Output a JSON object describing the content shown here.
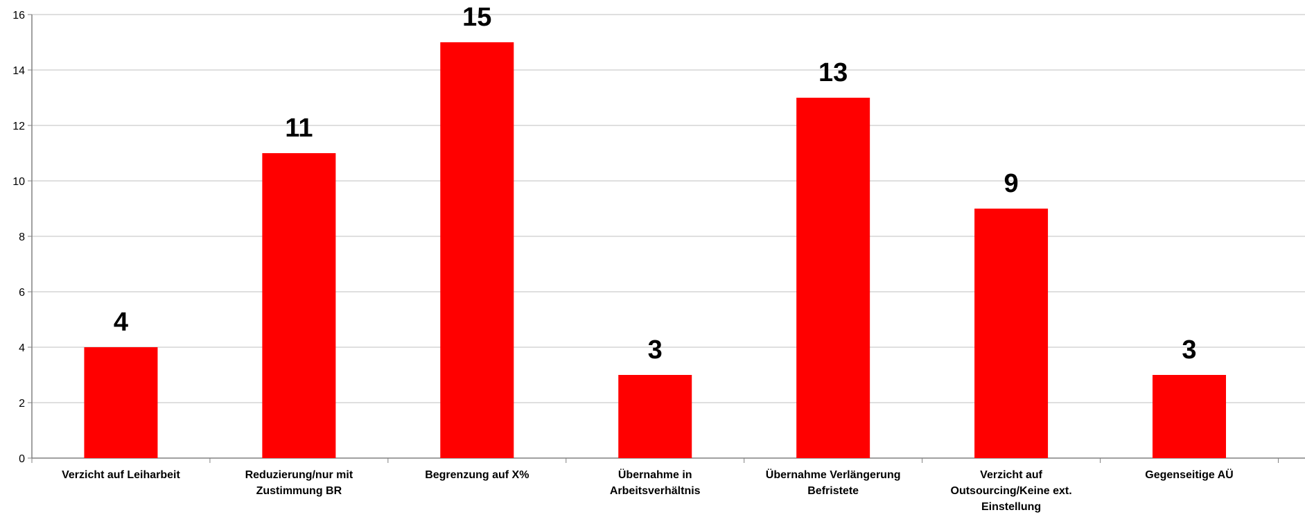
{
  "chart_data": {
    "type": "bar",
    "title": "",
    "xlabel": "",
    "ylabel": "",
    "ylim": [
      0,
      16
    ],
    "yticks": [
      0,
      2,
      4,
      6,
      8,
      10,
      12,
      14,
      16
    ],
    "grid": true,
    "legend": "none",
    "categories": [
      [
        "Verzicht auf Leiharbeit"
      ],
      [
        "Reduzierung/nur mit",
        "Zustimmung BR"
      ],
      [
        "Begrenzung auf X%"
      ],
      [
        "Übernahme in",
        "Arbeitsverhältnis"
      ],
      [
        "Übernahme Verlängerung",
        "Befristete"
      ],
      [
        "Verzicht auf",
        "Outsourcing/Keine ext.",
        "Einstellung"
      ],
      [
        "Gegenseitige AÜ"
      ]
    ],
    "values": [
      4,
      11,
      15,
      3,
      13,
      9,
      3
    ],
    "data_labels": [
      "4",
      "11",
      "15",
      "3",
      "13",
      "9",
      "3"
    ],
    "colors": {
      "bar": "#ff0000",
      "grid": "#bfbfbf",
      "axis": "#808080",
      "text": "#000000"
    }
  }
}
